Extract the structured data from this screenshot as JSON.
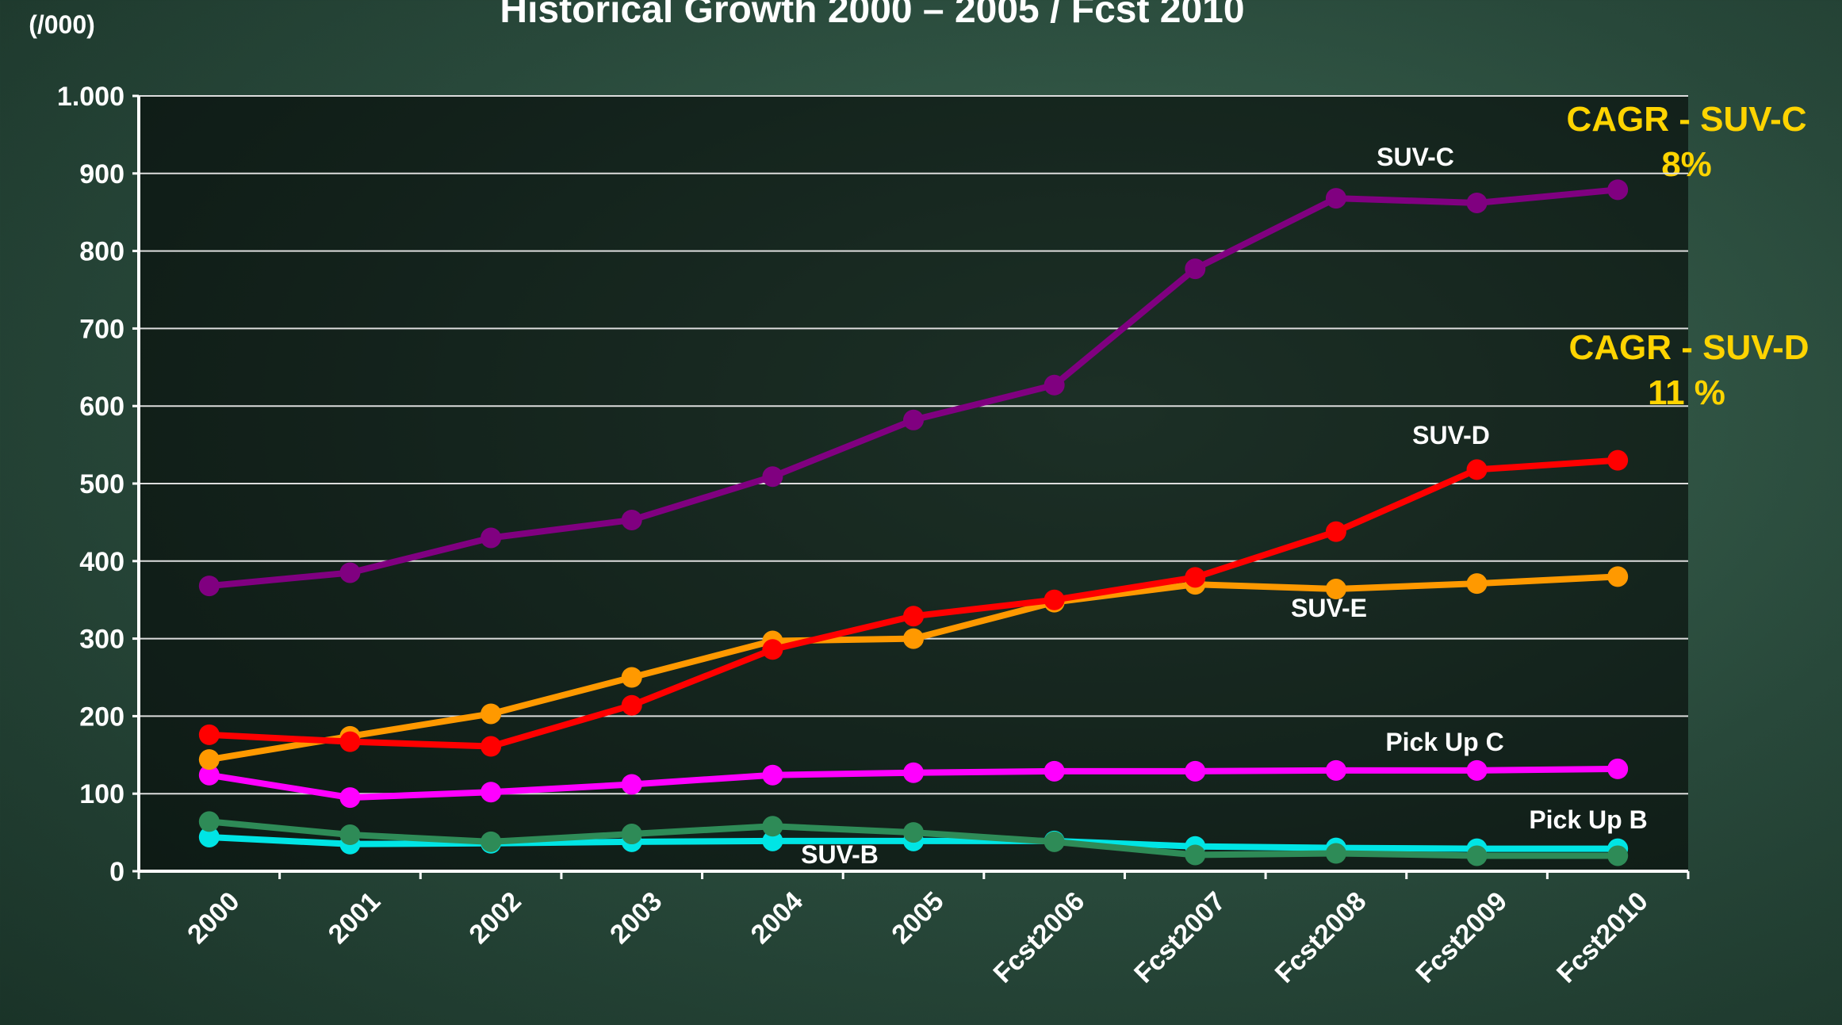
{
  "chart_data": {
    "type": "line",
    "title": "Historical Growth 2000 – 2005 / Fcst 2010",
    "y_label": "(/000)",
    "annotations": [
      "CAGR - SUV-C",
      "8%",
      "CAGR - SUV-D",
      "11 %"
    ],
    "categories": [
      "2000",
      "2001",
      "2002",
      "2003",
      "2004",
      "2005",
      "Fcst2006",
      "Fcst2007",
      "Fcst2008",
      "Fcst2009",
      "Fcst2010"
    ],
    "series": [
      {
        "name": "SUV-C",
        "color": "#800080",
        "values": [
          368,
          385,
          430,
          453,
          509,
          582,
          627,
          777,
          868,
          862,
          879
        ]
      },
      {
        "name": "SUV-D",
        "color": "#ff0000",
        "values": [
          176,
          167,
          161,
          214,
          286,
          329,
          350,
          379,
          438,
          518,
          530
        ]
      },
      {
        "name": "SUV-E",
        "color": "#ff9900",
        "values": [
          144,
          174,
          203,
          250,
          297,
          300,
          347,
          370,
          364,
          371,
          380
        ]
      },
      {
        "name": "Pick Up C",
        "color": "#ff00ff",
        "values": [
          124,
          95,
          102,
          112,
          124,
          127,
          129,
          129,
          130,
          130,
          132
        ]
      },
      {
        "name": "Pick Up B",
        "color": "#2e8b57",
        "values": [
          64,
          47,
          38,
          48,
          58,
          50,
          38,
          21,
          23,
          20,
          20
        ]
      },
      {
        "name": "SUV-B",
        "color": "#00e5e5",
        "values": [
          44,
          35,
          36,
          38,
          39,
          39,
          39,
          32,
          30,
          29,
          29
        ]
      }
    ],
    "ylim": [
      0,
      1000
    ],
    "yticks": [
      0,
      100,
      200,
      300,
      400,
      500,
      600,
      700,
      800,
      900,
      {
        "value": 1000,
        "label": "1.000"
      }
    ],
    "grid": true
  }
}
